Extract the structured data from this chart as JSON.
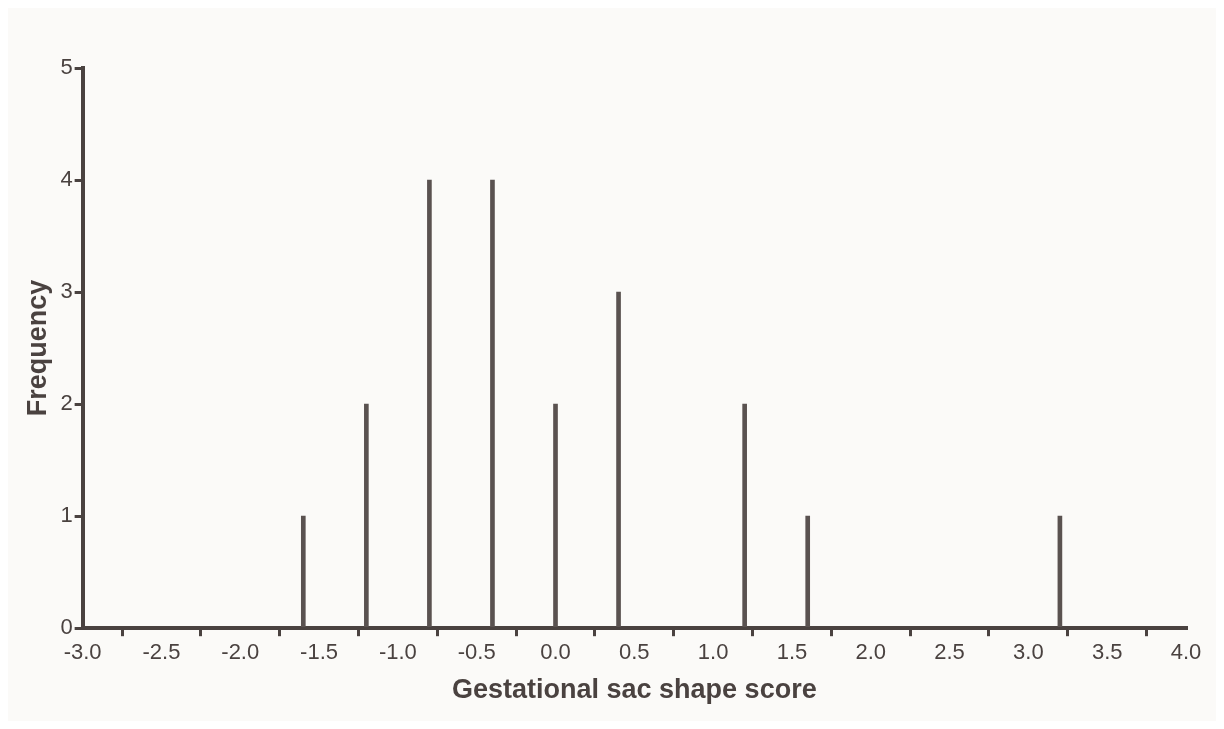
{
  "chart_data": {
    "type": "bar",
    "xlabel": "Gestational sac shape score",
    "ylabel": "Frequency",
    "x": [
      -1.6,
      -1.2,
      -0.8,
      -0.4,
      0.0,
      0.4,
      1.2,
      1.6,
      3.2
    ],
    "values": [
      1,
      2,
      4,
      4,
      2,
      3,
      2,
      1,
      1
    ],
    "color": "#5a5250",
    "xlim": [
      -3,
      4
    ],
    "xticks": [
      {
        "value": -3,
        "label": "-3.0"
      },
      {
        "value": -2.5,
        "label": "-2.5"
      },
      {
        "value": -2,
        "label": "-2.0"
      },
      {
        "value": -1.5,
        "label": "-1.5"
      },
      {
        "value": -1,
        "label": "-1.0"
      },
      {
        "value": -0.5,
        "label": "-0.5"
      },
      {
        "value": 0,
        "label": "0.0"
      },
      {
        "value": 0.5,
        "label": "0.5"
      },
      {
        "value": 1,
        "label": "1.0"
      },
      {
        "value": 1.5,
        "label": "1.5"
      },
      {
        "value": 2,
        "label": "2.0"
      },
      {
        "value": 2.5,
        "label": "2.5"
      },
      {
        "value": 3,
        "label": "3.0"
      },
      {
        "value": 3.5,
        "label": "3.5"
      },
      {
        "value": 4,
        "label": "4.0"
      }
    ],
    "ylim": [
      0,
      5
    ],
    "yticks": [
      0,
      1,
      2,
      3,
      4,
      5
    ],
    "grid": false
  }
}
